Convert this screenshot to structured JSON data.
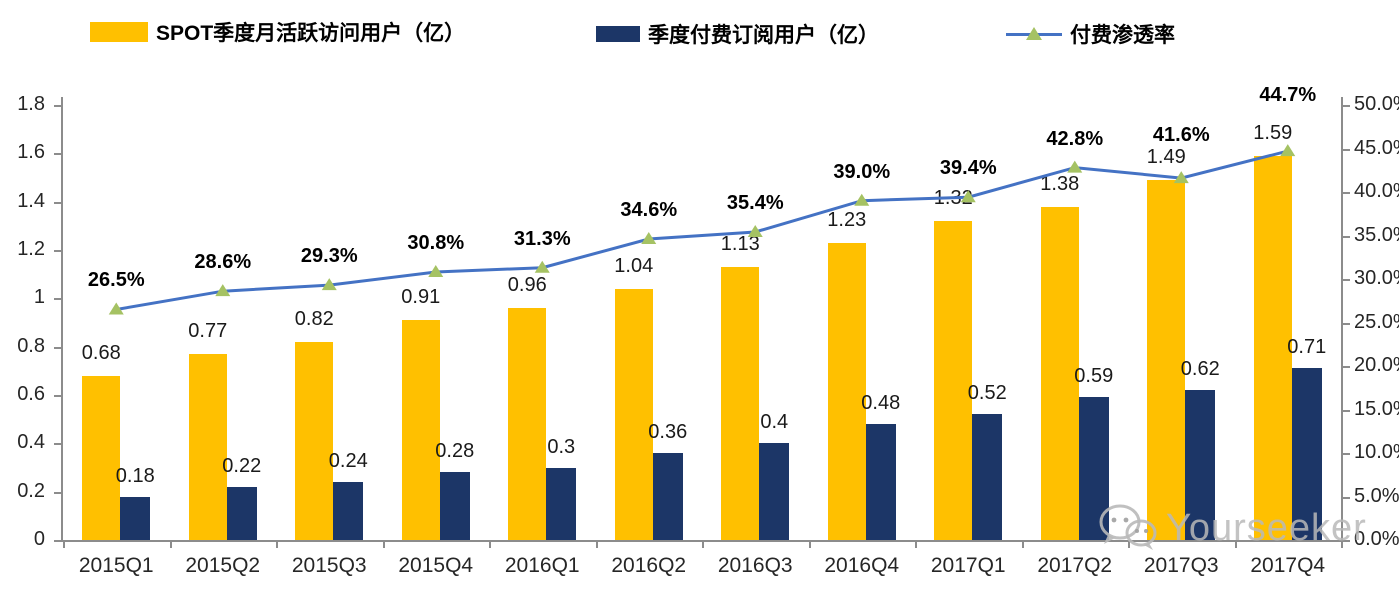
{
  "legend": {
    "items": [
      {
        "label": "SPOT季度月活跃访问用户（亿）",
        "swatch": "yellow-bar-swatch",
        "color": "#FFC000"
      },
      {
        "label": "季度付费订阅用户（亿）",
        "swatch": "navy-bar-swatch",
        "color": "#1C3667"
      },
      {
        "label": "付费渗透率",
        "swatch": "line-marker-swatch",
        "line_color": "#4472C4",
        "marker_color": "#A5C263"
      }
    ]
  },
  "chart_data": {
    "type": "combo-bar-line",
    "categories": [
      "2015Q1",
      "2015Q2",
      "2015Q3",
      "2015Q4",
      "2016Q1",
      "2016Q2",
      "2016Q3",
      "2016Q4",
      "2017Q1",
      "2017Q2",
      "2017Q3",
      "2017Q4"
    ],
    "series": [
      {
        "name": "SPOT季度月活跃访问用户（亿）",
        "type": "bar",
        "axis": "left",
        "color": "#FFC000",
        "values": [
          0.68,
          0.77,
          0.82,
          0.91,
          0.96,
          1.04,
          1.13,
          1.23,
          1.32,
          1.38,
          1.49,
          1.59
        ],
        "data_labels": [
          "0.68",
          "0.77",
          "0.82",
          "0.91",
          "0.96",
          "1.04",
          "1.13",
          "1.23",
          "1.32",
          "1.38",
          "1.49",
          "1.59"
        ]
      },
      {
        "name": "季度付费订阅用户（亿）",
        "type": "bar",
        "axis": "left",
        "color": "#1C3667",
        "values": [
          0.18,
          0.22,
          0.24,
          0.28,
          0.3,
          0.36,
          0.4,
          0.48,
          0.52,
          0.59,
          0.62,
          0.71
        ],
        "data_labels": [
          "0.18",
          "0.22",
          "0.24",
          "0.28",
          "0.3",
          "0.36",
          "0.4",
          "0.48",
          "0.52",
          "0.59",
          "0.62",
          "0.71"
        ]
      },
      {
        "name": "付费渗透率",
        "type": "line",
        "axis": "right",
        "color": "#4472C4",
        "marker": "triangle",
        "marker_color": "#A5C263",
        "values": [
          26.5,
          28.6,
          29.3,
          30.8,
          31.3,
          34.6,
          35.4,
          39.0,
          39.4,
          42.8,
          41.6,
          44.7
        ],
        "data_labels": [
          "26.5%",
          "28.6%",
          "29.3%",
          "30.8%",
          "31.3%",
          "34.6%",
          "35.4%",
          "39.0%",
          "39.4%",
          "42.8%",
          "41.6%",
          "44.7%"
        ]
      }
    ],
    "left_axis": {
      "min": 0,
      "max": 1.8,
      "step": 0.2,
      "ticks": [
        "0",
        "0.2",
        "0.4",
        "0.6",
        "0.8",
        "1",
        "1.2",
        "1.4",
        "1.6",
        "1.8"
      ]
    },
    "right_axis": {
      "min": 0,
      "max": 50,
      "step": 5,
      "ticks": [
        "0.0%",
        "5.0%",
        "10.0%",
        "15.0%",
        "20.0%",
        "25.0%",
        "30.0%",
        "35.0%",
        "40.0%",
        "45.0%",
        "50.0%"
      ]
    },
    "grid": false,
    "legend_position": "top",
    "axis_color": "#8C8C8C"
  },
  "watermark": {
    "icon": "wechat-icon",
    "text": "Yourseeker",
    "color": "#BBBBBB"
  }
}
